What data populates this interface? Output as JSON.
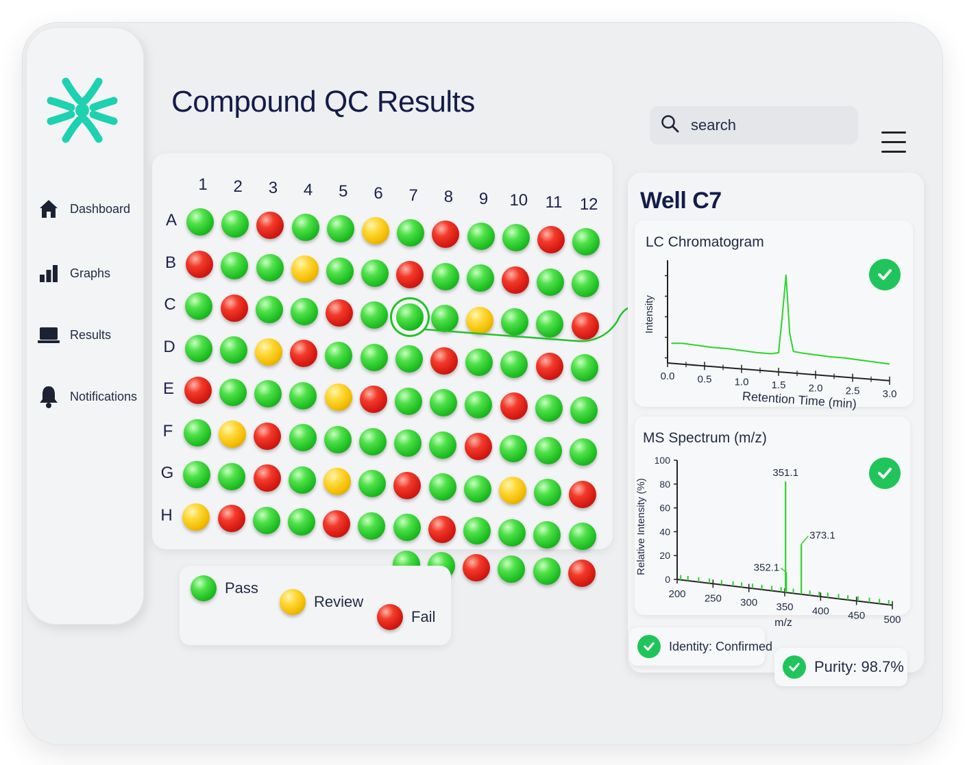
{
  "app": {
    "title": "Compound QC Results",
    "accent": "#22c22a"
  },
  "logo": {
    "icon": "asterisk-logo-icon",
    "color": "#1ed1b0"
  },
  "nav": {
    "items": [
      {
        "label": "Dashboard",
        "icon": "home-icon"
      },
      {
        "label": "Graphs",
        "icon": "bar-chart-icon"
      },
      {
        "label": "Results",
        "icon": "laptop-icon"
      },
      {
        "label": "Notifications",
        "icon": "bell-icon"
      }
    ]
  },
  "search": {
    "placeholder": "search",
    "icon": "search-icon"
  },
  "menu": {
    "icon": "hamburger-icon"
  },
  "plate": {
    "columns": [
      "1",
      "2",
      "3",
      "4",
      "5",
      "6",
      "7",
      "8",
      "9",
      "10",
      "11",
      "12"
    ],
    "rows": [
      "A",
      "B",
      "C",
      "D",
      "E",
      "F",
      "G",
      "H"
    ],
    "statuses": {
      "A": [
        "pass",
        "pass",
        "fail",
        "pass",
        "pass",
        "review",
        "pass",
        "fail",
        "pass",
        "pass",
        "fail",
        "pass"
      ],
      "B": [
        "fail",
        "pass",
        "pass",
        "review",
        "pass",
        "pass",
        "fail",
        "pass",
        "pass",
        "fail",
        "pass",
        "pass"
      ],
      "C": [
        "pass",
        "fail",
        "pass",
        "pass",
        "fail",
        "pass",
        "pass",
        "pass",
        "review",
        "pass",
        "pass",
        "fail"
      ],
      "D": [
        "pass",
        "pass",
        "review",
        "fail",
        "pass",
        "pass",
        "pass",
        "fail",
        "pass",
        "pass",
        "fail",
        "pass"
      ],
      "E": [
        "fail",
        "pass",
        "pass",
        "pass",
        "review",
        "fail",
        "pass",
        "pass",
        "pass",
        "fail",
        "pass",
        "pass"
      ],
      "F": [
        "pass",
        "review",
        "fail",
        "pass",
        "pass",
        "pass",
        "pass",
        "pass",
        "fail",
        "pass",
        "pass",
        "pass"
      ],
      "G": [
        "pass",
        "pass",
        "fail",
        "pass",
        "review",
        "pass",
        "fail",
        "pass",
        "pass",
        "review",
        "pass",
        "fail"
      ],
      "H": [
        "review",
        "fail",
        "pass",
        "pass",
        "fail",
        "pass",
        "pass",
        "fail",
        "pass",
        "pass",
        "pass",
        "pass"
      ]
    },
    "extra_row": [
      "pass",
      "pass",
      "fail",
      "pass",
      "pass",
      "fail"
    ],
    "selected": {
      "row": "C",
      "column": "7"
    },
    "colors": {
      "pass": "#22c22a",
      "review": "#f2bc00",
      "fail": "#e02a1e"
    }
  },
  "legend": {
    "pass": "Pass",
    "review": "Review",
    "fail": "Fail"
  },
  "detail": {
    "title": "Well C7",
    "identity": "Identity: Confirmed",
    "purity": "Purity: 98.7%"
  },
  "chart_data": [
    {
      "type": "line",
      "title": "LC Chromatogram",
      "xlabel": "Retention Time (min)",
      "ylabel": "Intensity",
      "xlim": [
        0,
        3.0
      ],
      "xticks": [
        "0.0",
        "0.5",
        "1.0",
        "1.5",
        "2.0",
        "2.5",
        "3.0"
      ],
      "x": [
        0.05,
        0.2,
        0.4,
        0.6,
        0.8,
        1.0,
        1.2,
        1.4,
        1.5,
        1.55,
        1.6,
        1.65,
        1.7,
        1.8,
        2.0,
        2.2,
        2.4,
        2.6,
        2.8,
        3.0
      ],
      "y": [
        0.06,
        0.07,
        0.06,
        0.05,
        0.05,
        0.04,
        0.03,
        0.03,
        0.05,
        0.5,
        1.0,
        0.3,
        0.08,
        0.07,
        0.06,
        0.05,
        0.05,
        0.04,
        0.03,
        0.02
      ],
      "status": "pass"
    },
    {
      "type": "bar",
      "title": "MS Spectrum (m/z)",
      "xlabel": "m/z",
      "ylabel": "Relative Intensity (%)",
      "xlim": [
        200,
        500
      ],
      "ylim": [
        0,
        100
      ],
      "xticks": [
        "200",
        "250",
        "300",
        "350",
        "400",
        "450",
        "500"
      ],
      "yticks": [
        "0",
        "20",
        "40",
        "60",
        "80",
        "100"
      ],
      "peaks": [
        {
          "mz": 351.1,
          "intensity": 93,
          "label": "351.1"
        },
        {
          "mz": 352.1,
          "intensity": 17,
          "label": "352.1"
        },
        {
          "mz": 373.1,
          "intensity": 42,
          "label": "373.1"
        }
      ],
      "noise": [
        205,
        215,
        230,
        245,
        262,
        278,
        290,
        305,
        318,
        332,
        345,
        362,
        385,
        398,
        410,
        425,
        438,
        452,
        468,
        482,
        495
      ],
      "status": "pass"
    }
  ]
}
